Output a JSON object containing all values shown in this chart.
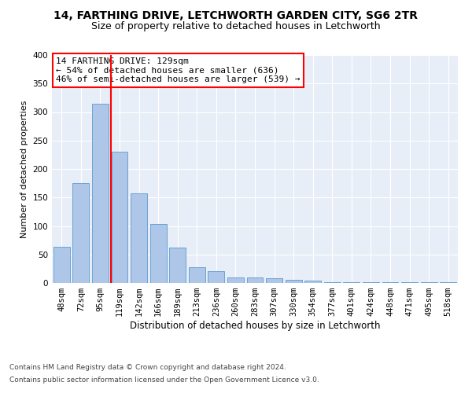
{
  "title1": "14, FARTHING DRIVE, LETCHWORTH GARDEN CITY, SG6 2TR",
  "title2": "Size of property relative to detached houses in Letchworth",
  "xlabel": "Distribution of detached houses by size in Letchworth",
  "ylabel": "Number of detached properties",
  "categories": [
    "48sqm",
    "72sqm",
    "95sqm",
    "119sqm",
    "142sqm",
    "166sqm",
    "189sqm",
    "213sqm",
    "236sqm",
    "260sqm",
    "283sqm",
    "307sqm",
    "330sqm",
    "354sqm",
    "377sqm",
    "401sqm",
    "424sqm",
    "448sqm",
    "471sqm",
    "495sqm",
    "518sqm"
  ],
  "values": [
    63,
    175,
    315,
    230,
    157,
    103,
    62,
    28,
    21,
    10,
    10,
    8,
    6,
    4,
    2,
    1,
    1,
    1,
    1,
    1,
    1
  ],
  "bar_color": "#aec6e8",
  "bar_edge_color": "#6aa3d4",
  "vline_color": "red",
  "vline_x": 2.57,
  "annotation_text": "14 FARTHING DRIVE: 129sqm\n← 54% of detached houses are smaller (636)\n46% of semi-detached houses are larger (539) →",
  "annotation_box_color": "white",
  "annotation_box_edge_color": "red",
  "footer1": "Contains HM Land Registry data © Crown copyright and database right 2024.",
  "footer2": "Contains public sector information licensed under the Open Government Licence v3.0.",
  "ylim": [
    0,
    400
  ],
  "yticks": [
    0,
    50,
    100,
    150,
    200,
    250,
    300,
    350,
    400
  ],
  "background_color": "#e8eef8",
  "grid_color": "white",
  "title1_fontsize": 10,
  "title2_fontsize": 9,
  "xlabel_fontsize": 8.5,
  "ylabel_fontsize": 8,
  "tick_fontsize": 7.5,
  "annotation_fontsize": 8,
  "footer_fontsize": 6.5
}
